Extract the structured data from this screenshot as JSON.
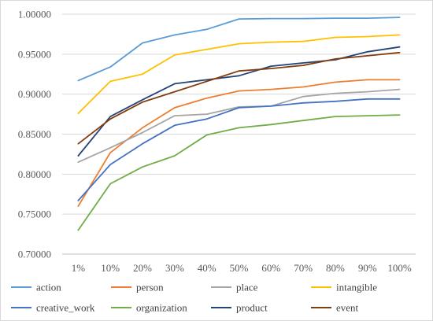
{
  "chart_data": {
    "type": "line",
    "title": "",
    "xlabel": "",
    "ylabel": "",
    "categories": [
      "1%",
      "10%",
      "20%",
      "30%",
      "40%",
      "50%",
      "60%",
      "70%",
      "80%",
      "90%",
      "100%"
    ],
    "y_ticks": [
      "0.70000",
      "0.75000",
      "0.80000",
      "0.85000",
      "0.90000",
      "0.95000",
      "1.00000"
    ],
    "ylim": [
      0.7,
      1.0
    ],
    "grid": "horizontal",
    "legend_placement": "bottom",
    "series": [
      {
        "name": "action",
        "color": "#5b9bd5",
        "values": [
          0.917,
          0.934,
          0.964,
          0.974,
          0.981,
          0.994,
          0.9945,
          0.9945,
          0.995,
          0.995,
          0.996
        ]
      },
      {
        "name": "person",
        "color": "#ed7d31",
        "values": [
          0.76,
          0.827,
          0.858,
          0.883,
          0.895,
          0.904,
          0.906,
          0.909,
          0.915,
          0.918,
          0.918
        ]
      },
      {
        "name": "place",
        "color": "#a5a5a5",
        "values": [
          0.815,
          0.833,
          0.852,
          0.873,
          0.875,
          0.884,
          0.885,
          0.897,
          0.901,
          0.903,
          0.906
        ]
      },
      {
        "name": "intangible",
        "color": "#ffc000",
        "values": [
          0.876,
          0.916,
          0.925,
          0.949,
          0.956,
          0.963,
          0.965,
          0.966,
          0.971,
          0.972,
          0.974
        ]
      },
      {
        "name": "creative_work",
        "color": "#4472c4",
        "values": [
          0.767,
          0.812,
          0.838,
          0.861,
          0.869,
          0.883,
          0.885,
          0.889,
          0.891,
          0.894,
          0.894
        ]
      },
      {
        "name": "organization",
        "color": "#70ad47",
        "values": [
          0.73,
          0.788,
          0.809,
          0.823,
          0.849,
          0.858,
          0.862,
          0.867,
          0.872,
          0.873,
          0.874
        ]
      },
      {
        "name": "product",
        "color": "#264478",
        "values": [
          0.823,
          0.872,
          0.893,
          0.913,
          0.918,
          0.923,
          0.935,
          0.939,
          0.943,
          0.953,
          0.959
        ]
      },
      {
        "name": "event",
        "color": "#843c0c",
        "values": [
          0.838,
          0.869,
          0.89,
          0.903,
          0.916,
          0.929,
          0.932,
          0.936,
          0.944,
          0.948,
          0.952
        ]
      }
    ]
  }
}
